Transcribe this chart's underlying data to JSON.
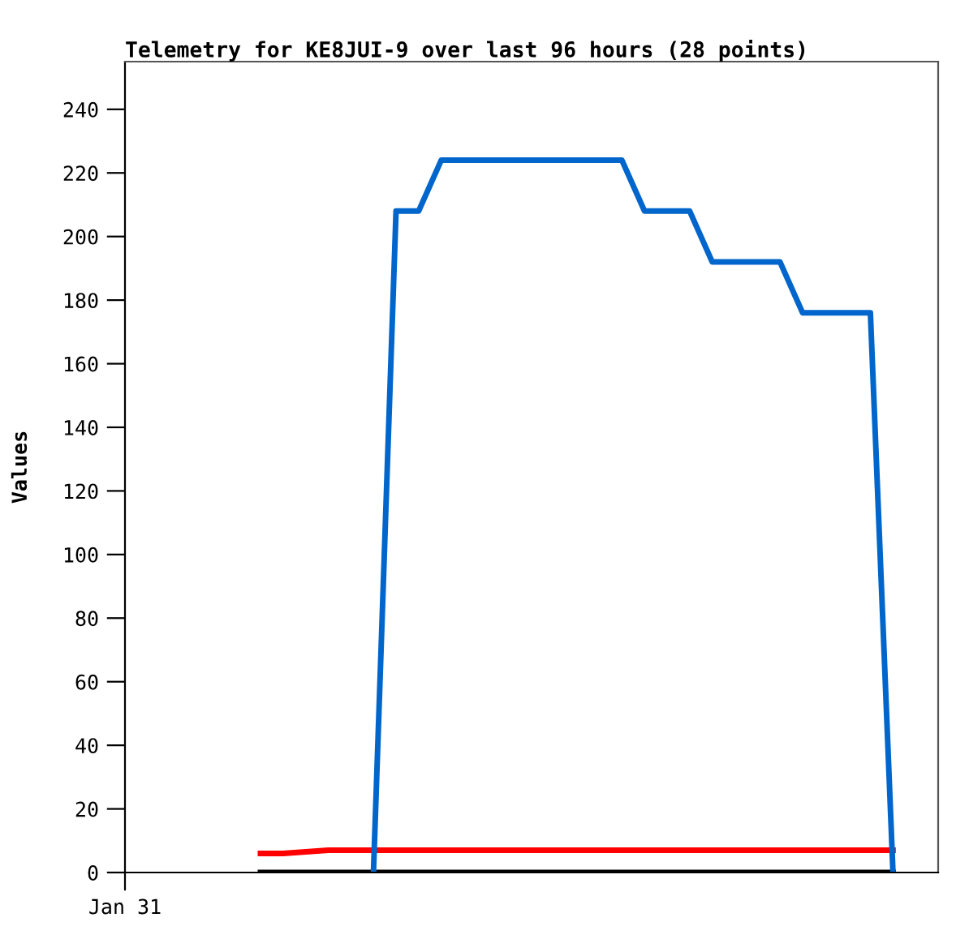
{
  "chart_data": {
    "type": "line",
    "title": "Telemetry for KE8JUI-9 over last 96 hours (28 points)",
    "ylabel": "Values",
    "categories": [
      "Jan 31",
      null,
      null,
      null,
      null,
      null,
      null,
      null,
      null,
      null,
      null,
      null,
      null,
      null,
      null,
      null,
      null,
      null,
      null,
      null,
      null,
      null,
      null,
      null,
      null,
      null,
      null,
      null,
      null,
      null,
      null,
      null,
      null,
      null,
      null,
      null,
      null
    ],
    "ylim": [
      0,
      255
    ],
    "yticks": [
      0,
      20,
      40,
      60,
      80,
      100,
      120,
      140,
      160,
      180,
      200,
      220,
      240
    ],
    "grid": false,
    "legend": false,
    "marker": "none",
    "line_style": "solid",
    "series": [
      {
        "color": "#000000",
        "values": [
          null,
          null,
          null,
          null,
          null,
          null,
          0,
          0,
          0,
          0,
          0,
          0,
          0,
          0,
          0,
          0,
          0,
          0,
          0,
          0,
          0,
          0,
          0,
          0,
          0,
          0,
          0,
          0,
          0,
          0,
          0,
          0,
          0,
          0,
          0,
          null,
          null
        ]
      },
      {
        "color": "#ff0000",
        "values": [
          null,
          null,
          null,
          null,
          null,
          null,
          6,
          6,
          6.5,
          7,
          7,
          7,
          7,
          7,
          7,
          7,
          7,
          7,
          7,
          7,
          7,
          7,
          7,
          7,
          7,
          7,
          7,
          7,
          7,
          7,
          7,
          7,
          7,
          7,
          7,
          null,
          null
        ]
      },
      {
        "color": "#0066cc",
        "values": [
          null,
          null,
          null,
          null,
          null,
          null,
          null,
          null,
          null,
          null,
          null,
          0,
          208,
          208,
          224,
          224,
          224,
          224,
          224,
          224,
          224,
          224,
          224,
          208,
          208,
          208,
          192,
          192,
          192,
          192,
          176,
          176,
          176,
          176,
          0,
          null,
          null
        ]
      }
    ]
  }
}
